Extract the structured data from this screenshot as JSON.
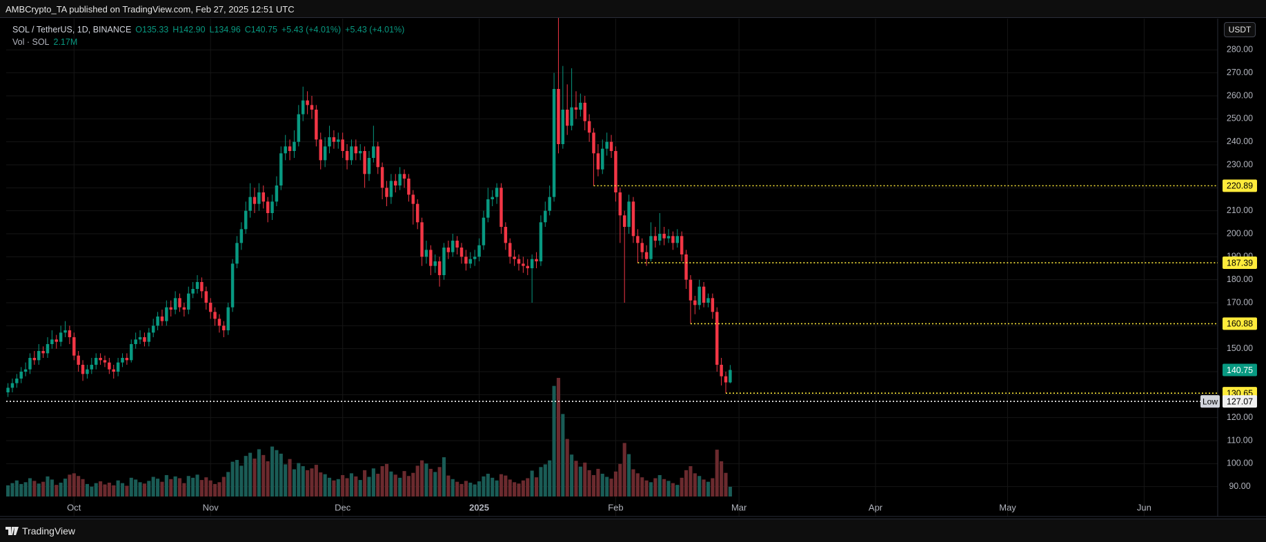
{
  "header": {
    "text": "AMBCrypto_TA published on TradingView.com, Feb 27, 2025 12:51 UTC"
  },
  "footer": {
    "brand": "TradingView"
  },
  "chart_data": {
    "type": "candlestick",
    "symbol": "SOL / TetherUS, 1D, BINANCE",
    "ohlc_legend": [
      "O135.33",
      "H142.90",
      "L134.96",
      "C140.75",
      "+5.43 (+4.01%)",
      "+5.43 (+4.01%)"
    ],
    "volume_legend": {
      "name": "Vol · SOL",
      "value": "2.17M"
    },
    "currency": "USDT",
    "open": [
      131,
      133,
      135,
      137,
      140,
      141,
      146,
      145,
      149,
      148,
      152,
      154,
      153,
      157,
      158,
      155,
      147,
      143,
      139,
      141,
      143,
      146,
      145,
      144,
      141,
      140,
      144,
      146,
      145,
      152,
      154,
      155,
      153,
      157,
      160,
      164,
      162,
      168,
      167,
      172,
      168,
      167,
      174,
      176,
      179,
      175,
      170,
      166,
      163,
      160,
      158,
      168,
      187,
      196,
      202,
      210,
      216,
      213,
      218,
      214,
      209,
      214,
      221,
      235,
      238,
      236,
      240,
      252,
      258,
      256,
      254,
      241,
      232,
      238,
      242,
      240,
      241,
      236,
      232,
      238,
      235,
      236,
      226,
      233,
      238,
      229,
      220,
      216,
      223,
      221,
      226,
      224,
      217,
      213,
      205,
      190,
      193,
      186,
      188,
      182,
      194,
      192,
      197,
      194,
      190,
      187,
      189,
      190,
      195,
      207,
      215,
      216,
      220,
      203,
      196,
      190,
      189,
      187,
      186,
      185,
      189,
      188,
      205,
      210,
      216,
      263,
      239,
      254,
      247,
      255,
      254,
      257,
      249,
      244,
      235,
      228,
      237,
      240,
      236,
      218,
      208,
      203,
      214,
      199,
      196,
      192,
      189,
      199,
      197,
      200,
      198,
      199,
      196,
      199,
      191,
      180,
      171,
      169,
      177,
      170,
      172,
      166,
      143,
      138,
      135.33
    ],
    "high": [
      135,
      137,
      139,
      142,
      144,
      148,
      149,
      152,
      151,
      155,
      158,
      156,
      160,
      162,
      160,
      157,
      149,
      145,
      143,
      146,
      148,
      148,
      147,
      146,
      143,
      146,
      148,
      148,
      154,
      157,
      158,
      157,
      159,
      163,
      166,
      167,
      171,
      171,
      175,
      174,
      170,
      177,
      179,
      182,
      181,
      177,
      172,
      168,
      165,
      162,
      170,
      189,
      199,
      205,
      214,
      222,
      220,
      222,
      221,
      216,
      217,
      225,
      238,
      243,
      241,
      245,
      256,
      264,
      262,
      260,
      256,
      244,
      242,
      247,
      245,
      244,
      244,
      239,
      241,
      241,
      239,
      238,
      236,
      247,
      240,
      231,
      223,
      226,
      226,
      229,
      228,
      226,
      219,
      215,
      207,
      197,
      195,
      191,
      190,
      196,
      197,
      200,
      199,
      196,
      193,
      192,
      193,
      198,
      210,
      220,
      219,
      222,
      222,
      205,
      198,
      193,
      191,
      190,
      189,
      191,
      192,
      208,
      214,
      221,
      270,
      295,
      273,
      265,
      272,
      262,
      261,
      260,
      252,
      246,
      239,
      241,
      244,
      243,
      238,
      220,
      210,
      217,
      216,
      202,
      198,
      195,
      205,
      203,
      209,
      203,
      202,
      201,
      202,
      201,
      193,
      182,
      173,
      180,
      179,
      174,
      174,
      168,
      146,
      140,
      142.9
    ],
    "low": [
      129,
      131,
      133,
      135,
      138,
      139,
      143,
      143,
      146,
      146,
      150,
      150,
      151,
      155,
      152,
      145,
      140,
      136,
      137,
      139,
      141,
      143,
      142,
      139,
      137,
      138,
      142,
      143,
      144,
      150,
      152,
      151,
      151,
      155,
      158,
      160,
      160,
      164,
      165,
      166,
      164,
      165,
      172,
      174,
      172,
      167,
      163,
      160,
      157,
      155,
      156,
      166,
      185,
      193,
      200,
      207,
      209,
      210,
      211,
      205,
      206,
      212,
      219,
      232,
      232,
      233,
      238,
      249,
      252,
      250,
      238,
      228,
      229,
      235,
      237,
      237,
      233,
      228,
      230,
      232,
      232,
      220,
      223,
      231,
      226,
      215,
      212,
      213,
      218,
      219,
      220,
      214,
      204,
      202,
      186,
      187,
      182,
      183,
      177,
      180,
      189,
      190,
      191,
      187,
      184,
      185,
      186,
      188,
      193,
      205,
      212,
      213,
      200,
      193,
      187,
      186,
      184,
      183,
      182,
      170,
      185,
      186,
      203,
      208,
      214,
      235,
      237,
      243,
      245,
      250,
      251,
      245,
      240,
      220.89,
      225,
      226,
      234,
      233,
      214,
      196,
      170,
      200,
      196,
      187.39,
      189,
      186,
      188,
      194,
      195,
      195,
      196,
      193,
      194,
      188,
      176,
      160.88,
      165,
      167,
      168,
      168,
      163,
      140,
      134,
      130.65,
      134.96
    ],
    "close": [
      133,
      135,
      137,
      140,
      141,
      146,
      145,
      149,
      148,
      152,
      154,
      153,
      157,
      158,
      155,
      147,
      143,
      139,
      141,
      143,
      146,
      145,
      144,
      141,
      140,
      144,
      146,
      145,
      152,
      154,
      155,
      153,
      157,
      160,
      164,
      162,
      168,
      167,
      172,
      168,
      167,
      174,
      176,
      179,
      175,
      170,
      166,
      163,
      160,
      158,
      168,
      187,
      196,
      202,
      210,
      216,
      213,
      218,
      214,
      209,
      214,
      221,
      235,
      238,
      236,
      240,
      252,
      258,
      256,
      254,
      241,
      232,
      238,
      242,
      240,
      241,
      236,
      232,
      238,
      235,
      236,
      226,
      233,
      238,
      229,
      220,
      216,
      223,
      221,
      226,
      224,
      217,
      213,
      205,
      190,
      193,
      186,
      188,
      182,
      194,
      192,
      197,
      194,
      190,
      187,
      189,
      190,
      195,
      207,
      215,
      216,
      220,
      203,
      196,
      190,
      189,
      187,
      186,
      185,
      189,
      188,
      205,
      210,
      216,
      263,
      239,
      254,
      247,
      255,
      254,
      257,
      249,
      244,
      235,
      228,
      237,
      240,
      236,
      218,
      208,
      203,
      214,
      199,
      196,
      192,
      189,
      199,
      197,
      200,
      198,
      199,
      196,
      199,
      191,
      180,
      171,
      169,
      177,
      170,
      172,
      166,
      143,
      138,
      135.33,
      140.75
    ],
    "volume": [
      2.5,
      3.0,
      3.6,
      2.8,
      3.2,
      4.1,
      3.5,
      2.9,
      3.3,
      4.5,
      3.8,
      2.6,
      3.1,
      4.0,
      4.9,
      5.2,
      4.6,
      3.9,
      2.8,
      2.2,
      3.0,
      3.4,
      2.7,
      3.1,
      2.5,
      3.6,
      3.0,
      2.4,
      4.2,
      3.8,
      3.2,
      2.9,
      3.5,
      4.4,
      4.0,
      3.3,
      4.8,
      3.9,
      4.5,
      4.1,
      3.0,
      4.6,
      4.2,
      4.9,
      3.7,
      4.3,
      3.6,
      2.8,
      3.2,
      4.4,
      5.5,
      7.8,
      8.2,
      6.9,
      9.1,
      9.8,
      8.5,
      10.6,
      9.3,
      7.9,
      11.2,
      10.4,
      9.6,
      7.2,
      8.4,
      6.1,
      7.5,
      6.8,
      5.9,
      6.3,
      7.1,
      5.4,
      5.0,
      4.2,
      3.6,
      3.9,
      4.8,
      4.1,
      5.2,
      4.5,
      3.7,
      5.9,
      4.4,
      6.3,
      5.1,
      6.8,
      7.3,
      5.6,
      4.9,
      4.2,
      5.7,
      4.6,
      5.3,
      6.9,
      8.1,
      7.4,
      6.2,
      5.5,
      6.6,
      8.8,
      4.7,
      3.9,
      3.3,
      2.8,
      3.5,
      3.1,
      2.7,
      3.4,
      4.5,
      5.1,
      4.2,
      3.6,
      5.0,
      4.7,
      3.8,
      3.2,
      2.9,
      3.6,
      4.1,
      5.8,
      4.3,
      6.6,
      7.2,
      8.1,
      24.8,
      26.6,
      18.5,
      12.9,
      9.4,
      8.0,
      6.7,
      7.6,
      5.9,
      4.8,
      6.2,
      5.1,
      4.4,
      4.0,
      5.6,
      7.3,
      12.0,
      9.5,
      6.1,
      5.2,
      4.3,
      3.6,
      3.2,
      4.1,
      4.8,
      3.9,
      3.5,
      3.0,
      2.6,
      4.2,
      5.9,
      6.8,
      5.2,
      4.6,
      3.8,
      3.3,
      4.1,
      10.5,
      7.9,
      5.3,
      2.17
    ],
    "up_color": "#089981",
    "down_color": "#f23645",
    "volume_up_color": "#1a5c56",
    "volume_down_color": "#6b2a2e",
    "xlim": [
      -0.4,
      274.7
    ],
    "xticks": [
      {
        "value": 15,
        "label": "Oct"
      },
      {
        "value": 46,
        "label": "Nov"
      },
      {
        "value": 76,
        "label": "Dec"
      },
      {
        "value": 107,
        "label": "2025"
      },
      {
        "value": 138,
        "label": "Feb"
      },
      {
        "value": 166,
        "label": "Mar"
      },
      {
        "value": 197,
        "label": "Apr"
      },
      {
        "value": 227,
        "label": "May"
      },
      {
        "value": 258,
        "label": "Jun"
      }
    ],
    "ylim": [
      77,
      293.6
    ],
    "yticks": [
      {
        "value": 90,
        "label": "90.00"
      },
      {
        "value": 100,
        "label": "100.00"
      },
      {
        "value": 110,
        "label": "110.00"
      },
      {
        "value": 120,
        "label": "120.00"
      },
      {
        "value": 130,
        "label": "130.00"
      },
      {
        "value": 140,
        "label": "140.00"
      },
      {
        "value": 150,
        "label": "150.00"
      },
      {
        "value": 160,
        "label": "160.00"
      },
      {
        "value": 170,
        "label": "170.00"
      },
      {
        "value": 180,
        "label": "180.00"
      },
      {
        "value": 190,
        "label": "190.00"
      },
      {
        "value": 200,
        "label": "200.00"
      },
      {
        "value": 210,
        "label": "210.00"
      },
      {
        "value": 220,
        "label": "220.00"
      },
      {
        "value": 230,
        "label": "230.00"
      },
      {
        "value": 240,
        "label": "240.00"
      },
      {
        "value": 250,
        "label": "250.00"
      },
      {
        "value": 260,
        "label": "260.00"
      },
      {
        "value": 270,
        "label": "270.00"
      },
      {
        "value": 280,
        "label": "280.00"
      }
    ],
    "volume_ylim": [
      0,
      30
    ],
    "grid": true,
    "levels": [
      {
        "value": 220.89,
        "start": 133
      },
      {
        "value": 187.39,
        "start": 143
      },
      {
        "value": 160.88,
        "start": 155
      },
      {
        "value": 130.65,
        "start": 163
      }
    ],
    "level_color": "#ffeb3b",
    "low_line": {
      "label": "Low",
      "value": 127.07
    }
  }
}
